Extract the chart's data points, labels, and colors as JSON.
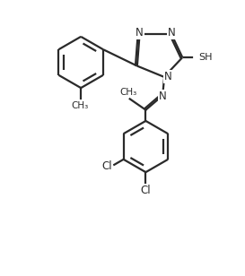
{
  "bg_color": "#ffffff",
  "line_color": "#2a2a2a",
  "line_width": 1.6,
  "figsize": [
    2.73,
    3.08
  ],
  "dpi": 100,
  "xlim": [
    0,
    10
  ],
  "ylim": [
    0,
    11.3
  ]
}
